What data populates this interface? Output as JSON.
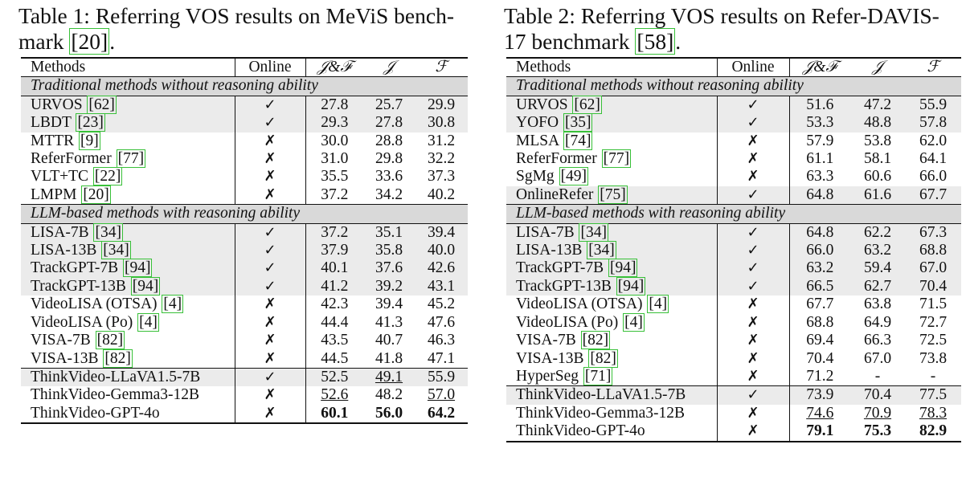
{
  "tables": [
    {
      "caption_line1": "Table 1: Referring VOS results on MeViS bench-",
      "caption_line2_pre": "mark ",
      "caption_ref": "[20]",
      "caption_line2_post": ".",
      "headers": {
        "methods": "Methods",
        "online": "Online",
        "jf": "𝒥&ℱ",
        "j": "𝒥",
        "f": "ℱ"
      },
      "sections": [
        {
          "title": "Traditional methods without reasoning ability",
          "rows": [
            {
              "name": "URVOS",
              "cite": "[62]",
              "online": "✓",
              "jf": "27.8",
              "j": "25.7",
              "f": "29.9"
            },
            {
              "name": "LBDT",
              "cite": "[23]",
              "online": "✓",
              "jf": "29.3",
              "j": "27.8",
              "f": "30.8"
            },
            {
              "name": "MTTR",
              "cite": "[9]",
              "online": "✗",
              "jf": "30.0",
              "j": "28.8",
              "f": "31.2"
            },
            {
              "name": "ReferFormer",
              "cite": "[77]",
              "online": "✗",
              "jf": "31.0",
              "j": "29.8",
              "f": "32.2"
            },
            {
              "name": "VLT+TC",
              "cite": "[22]",
              "online": "✗",
              "jf": "35.5",
              "j": "33.6",
              "f": "37.3"
            },
            {
              "name": "LMPM",
              "cite": "[20]",
              "online": "✗",
              "jf": "37.2",
              "j": "34.2",
              "f": "40.2"
            }
          ]
        },
        {
          "title": "LLM-based methods with reasoning ability",
          "rows": [
            {
              "name": "LISA-7B",
              "cite": "[34]",
              "online": "✓",
              "jf": "37.2",
              "j": "35.1",
              "f": "39.4"
            },
            {
              "name": "LISA-13B",
              "cite": "[34]",
              "online": "✓",
              "jf": "37.9",
              "j": "35.8",
              "f": "40.0"
            },
            {
              "name": "TrackGPT-7B",
              "cite": "[94]",
              "online": "✓",
              "jf": "40.1",
              "j": "37.6",
              "f": "42.6"
            },
            {
              "name": "TrackGPT-13B",
              "cite": "[94]",
              "online": "✓",
              "jf": "41.2",
              "j": "39.2",
              "f": "43.1"
            },
            {
              "name": "VideoLISA (OTSA)",
              "cite": "[4]",
              "online": "✗",
              "jf": "42.3",
              "j": "39.4",
              "f": "45.2"
            },
            {
              "name": "VideoLISA (Po)",
              "cite": "[4]",
              "online": "✗",
              "jf": "44.4",
              "j": "41.3",
              "f": "47.6"
            },
            {
              "name": "VISA-7B",
              "cite": "[82]",
              "online": "✗",
              "jf": "43.5",
              "j": "40.7",
              "f": "46.3"
            },
            {
              "name": "VISA-13B",
              "cite": "[82]",
              "online": "✗",
              "jf": "44.5",
              "j": "41.8",
              "f": "47.1"
            }
          ]
        }
      ],
      "ours": [
        {
          "name": "ThinkVideo-LLaVA1.5-7B",
          "cite": "",
          "online": "✓",
          "jf": "52.5",
          "j": "49.1",
          "f": "55.9",
          "marks": {
            "j": "second"
          }
        },
        {
          "name": "ThinkVideo-Gemma3-12B",
          "cite": "",
          "online": "✗",
          "jf": "52.6",
          "j": "48.2",
          "f": "57.0",
          "marks": {
            "jf": "second",
            "f": "second"
          }
        },
        {
          "name": "ThinkVideo-GPT-4o",
          "cite": "",
          "online": "✗",
          "jf": "60.1",
          "j": "56.0",
          "f": "64.2",
          "marks": {
            "jf": "best",
            "j": "best",
            "f": "best"
          }
        }
      ]
    },
    {
      "caption_line1": "Table 2: Referring VOS results on Refer-DAVIS-",
      "caption_line2_pre": "17 benchmark ",
      "caption_ref": "[58]",
      "caption_line2_post": ".",
      "headers": {
        "methods": "Methods",
        "online": "Online",
        "jf": "𝒥&ℱ",
        "j": "𝒥",
        "f": "ℱ"
      },
      "sections": [
        {
          "title": "Traditional methods without reasoning ability",
          "rows": [
            {
              "name": "URVOS",
              "cite": "[62]",
              "online": "✓",
              "jf": "51.6",
              "j": "47.2",
              "f": "55.9"
            },
            {
              "name": "YOFO",
              "cite": "[35]",
              "online": "✓",
              "jf": "53.3",
              "j": "48.8",
              "f": "57.8"
            },
            {
              "name": "MLSA",
              "cite": "[74]",
              "online": "✗",
              "jf": "57.9",
              "j": "53.8",
              "f": "62.0"
            },
            {
              "name": "ReferFormer",
              "cite": "[77]",
              "online": "✗",
              "jf": "61.1",
              "j": "58.1",
              "f": "64.1"
            },
            {
              "name": "SgMg",
              "cite": "[49]",
              "online": "✗",
              "jf": "63.3",
              "j": "60.6",
              "f": "66.0"
            },
            {
              "name": "OnlineRefer",
              "cite": "[75]",
              "online": "✓",
              "jf": "64.8",
              "j": "61.6",
              "f": "67.7"
            }
          ]
        },
        {
          "title": "LLM-based methods with reasoning ability",
          "rows": [
            {
              "name": "LISA-7B",
              "cite": "[34]",
              "online": "✓",
              "jf": "64.8",
              "j": "62.2",
              "f": "67.3"
            },
            {
              "name": "LISA-13B",
              "cite": "[34]",
              "online": "✓",
              "jf": "66.0",
              "j": "63.2",
              "f": "68.8"
            },
            {
              "name": "TrackGPT-7B",
              "cite": "[94]",
              "online": "✓",
              "jf": "63.2",
              "j": "59.4",
              "f": "67.0"
            },
            {
              "name": "TrackGPT-13B",
              "cite": "[94]",
              "online": "✓",
              "jf": "66.5",
              "j": "62.7",
              "f": "70.4"
            },
            {
              "name": "VideoLISA (OTSA)",
              "cite": "[4]",
              "online": "✗",
              "jf": "67.7",
              "j": "63.8",
              "f": "71.5"
            },
            {
              "name": "VideoLISA (Po)",
              "cite": "[4]",
              "online": "✗",
              "jf": "68.8",
              "j": "64.9",
              "f": "72.7"
            },
            {
              "name": "VISA-7B",
              "cite": "[82]",
              "online": "✗",
              "jf": "69.4",
              "j": "66.3",
              "f": "72.5"
            },
            {
              "name": "VISA-13B",
              "cite": "[82]",
              "online": "✗",
              "jf": "70.4",
              "j": "67.0",
              "f": "73.8"
            },
            {
              "name": "HyperSeg",
              "cite": "[71]",
              "online": "✗",
              "jf": "71.2",
              "j": "-",
              "f": "-"
            }
          ]
        }
      ],
      "ours": [
        {
          "name": "ThinkVideo-LLaVA1.5-7B",
          "cite": "",
          "online": "✓",
          "jf": "73.9",
          "j": "70.4",
          "f": "77.5",
          "marks": {}
        },
        {
          "name": "ThinkVideo-Gemma3-12B",
          "cite": "",
          "online": "✗",
          "jf": "74.6",
          "j": "70.9",
          "f": "78.3",
          "marks": {
            "jf": "second",
            "j": "second",
            "f": "second"
          }
        },
        {
          "name": "ThinkVideo-GPT-4o",
          "cite": "",
          "online": "✗",
          "jf": "79.1",
          "j": "75.3",
          "f": "82.9",
          "marks": {
            "jf": "best",
            "j": "best",
            "f": "best"
          }
        }
      ]
    }
  ]
}
